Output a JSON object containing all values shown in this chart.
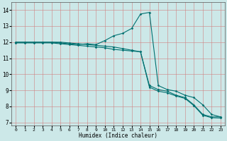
{
  "title": "",
  "xlabel": "Humidex (Indice chaleur)",
  "ylabel": "",
  "background_color": "#cce8e8",
  "grid_color": "#b0c8c8",
  "line_color": "#007070",
  "xlim": [
    -0.5,
    23.5
  ],
  "ylim": [
    6.8,
    14.5
  ],
  "xticks": [
    0,
    1,
    2,
    3,
    4,
    5,
    6,
    7,
    8,
    9,
    10,
    11,
    12,
    13,
    14,
    15,
    16,
    17,
    18,
    19,
    20,
    21,
    22,
    23
  ],
  "yticks": [
    7,
    8,
    9,
    10,
    11,
    12,
    13,
    14
  ],
  "series1_y": [
    12.0,
    12.0,
    12.0,
    12.0,
    12.0,
    12.0,
    11.95,
    11.9,
    11.85,
    11.8,
    11.75,
    11.7,
    11.6,
    11.5,
    11.4,
    9.3,
    9.05,
    8.95,
    8.7,
    8.55,
    8.1,
    7.5,
    7.35,
    7.35
  ],
  "series2_y": [
    11.95,
    11.95,
    11.95,
    11.95,
    11.95,
    11.9,
    11.85,
    11.8,
    11.75,
    11.7,
    11.65,
    11.55,
    11.5,
    11.45,
    11.4,
    9.2,
    8.95,
    8.85,
    8.65,
    8.5,
    8.05,
    7.45,
    7.3,
    7.28
  ],
  "series3_y": [
    12.0,
    12.0,
    12.0,
    12.0,
    12.0,
    11.95,
    11.9,
    11.85,
    11.9,
    11.85,
    12.1,
    12.4,
    12.55,
    12.85,
    13.75,
    13.85,
    9.3,
    9.05,
    8.95,
    8.7,
    8.55,
    8.1,
    7.5,
    7.35
  ]
}
